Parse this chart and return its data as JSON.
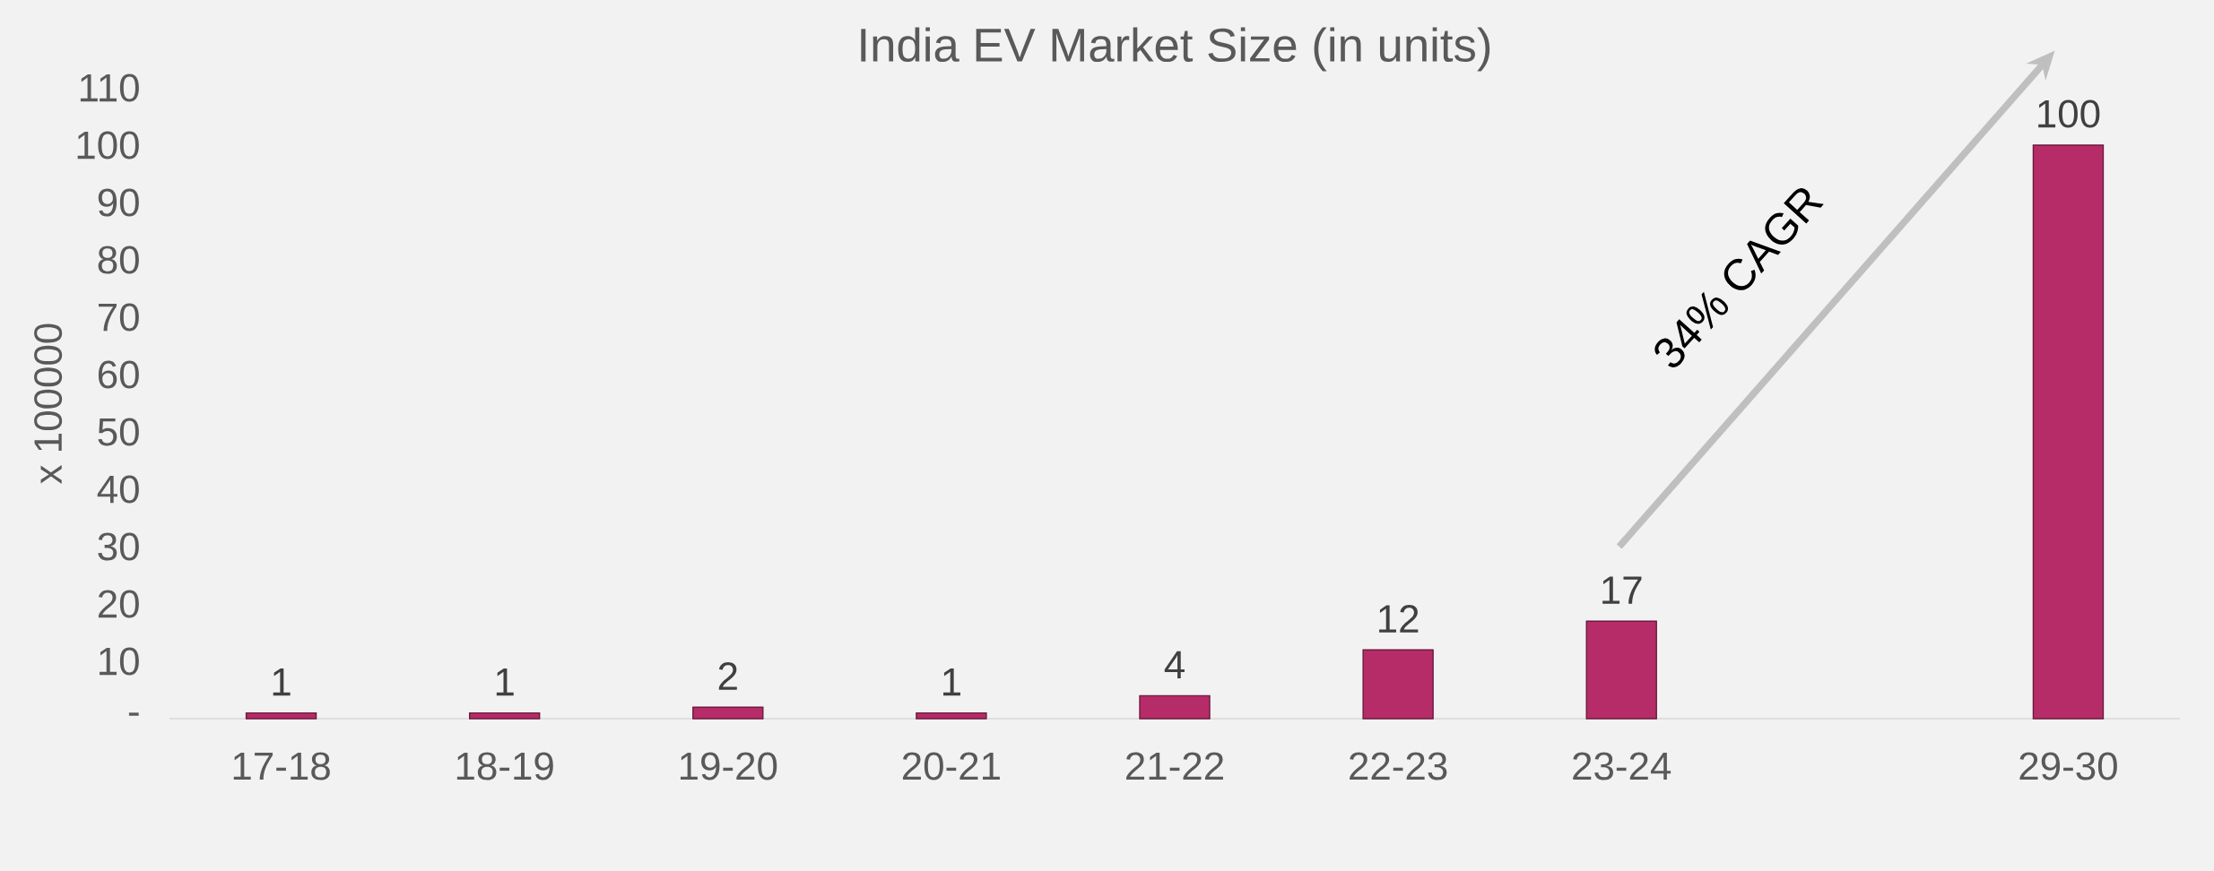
{
  "chart_data": {
    "type": "bar",
    "title": "India EV Market Size (in units)",
    "ylabel": "x 100000",
    "categories": [
      "17-18",
      "18-19",
      "19-20",
      "20-21",
      "21-22",
      "22-23",
      "23-24",
      null,
      "29-30"
    ],
    "values": [
      1,
      1,
      2,
      1,
      4,
      12,
      17,
      null,
      100
    ],
    "color": "#b52c68",
    "ylim": [
      0,
      110
    ],
    "yticks": [
      {
        "value": 0,
        "label": "-"
      },
      10,
      20,
      30,
      40,
      50,
      60,
      70,
      80,
      90,
      100,
      110
    ],
    "data_labels": true,
    "annotations": [
      "34% CAGR"
    ]
  }
}
